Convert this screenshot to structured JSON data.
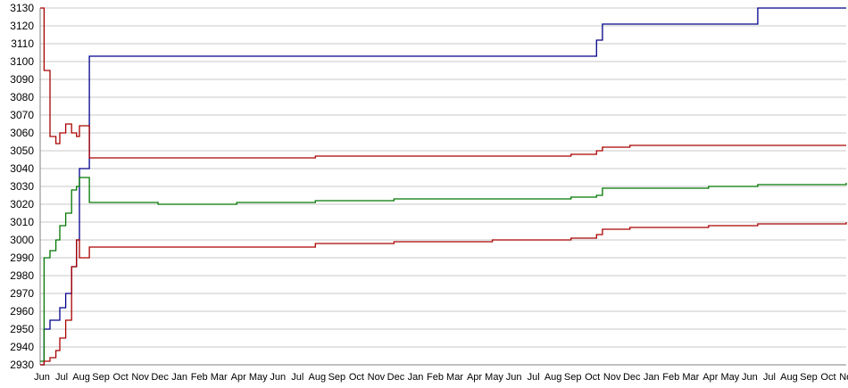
{
  "chart_data": {
    "type": "line",
    "title": "",
    "xlabel": "",
    "ylabel": "",
    "ylim": [
      2930,
      3130
    ],
    "y_ticks": [
      3130,
      3120,
      3110,
      3100,
      3090,
      3080,
      3070,
      3060,
      3050,
      3040,
      3030,
      3020,
      3010,
      3000,
      2990,
      2980,
      2970,
      2960,
      2950,
      2940,
      2930
    ],
    "grid": true,
    "legend": "none",
    "x_ticks": [
      "Jun",
      "Jul",
      "Aug",
      "Sep",
      "Oct",
      "Nov",
      "Dec",
      "Jan",
      "Feb",
      "Mar",
      "Apr",
      "May",
      "Jun",
      "Jul",
      "Aug",
      "Sep",
      "Oct",
      "Nov",
      "Dec",
      "Jan",
      "Feb",
      "Mar",
      "Apr",
      "May",
      "Jun",
      "Jul",
      "Aug",
      "Sep",
      "Oct",
      "Nov",
      "Dec",
      "Jan",
      "Feb",
      "Mar",
      "Apr",
      "May",
      "Jun",
      "Jul",
      "Aug",
      "Sep",
      "Oct",
      "Nov"
    ],
    "x": [
      0,
      0.2,
      0.5,
      0.8,
      1.0,
      1.3,
      1.6,
      1.85,
      2.0,
      2.5,
      3,
      6,
      10,
      14,
      18,
      20,
      23,
      27,
      28.3,
      28.6,
      30,
      34,
      36.5,
      41
    ],
    "series": [
      {
        "color": "#00008B",
        "values": [
          2930,
          2950,
          2955,
          2955,
          2962,
          2970,
          2985,
          3000,
          3040,
          3103,
          3103,
          3103,
          3103,
          3103,
          3103,
          3103,
          3103,
          3103,
          3112,
          3121,
          3121,
          3121,
          3130,
          3130
        ]
      },
      {
        "color": "#AA0000",
        "values": [
          3130,
          3095,
          3058,
          3054,
          3060,
          3065,
          3060,
          3058,
          3064,
          3046,
          3046,
          3046,
          3046,
          3047,
          3047,
          3047,
          3047,
          3048,
          3050,
          3052,
          3053,
          3053,
          3053,
          3053
        ]
      },
      {
        "color": "#007700",
        "values": [
          2932,
          2990,
          2994,
          3000,
          3008,
          3015,
          3028,
          3030,
          3035,
          3021,
          3021,
          3020,
          3021,
          3022,
          3023,
          3023,
          3023,
          3024,
          3025,
          3029,
          3029,
          3030,
          3031,
          3032
        ]
      },
      {
        "color": "#AA0000",
        "values": [
          2930,
          2932,
          2934,
          2938,
          2945,
          2955,
          2985,
          3000,
          2990,
          2996,
          2996,
          2996,
          2996,
          2998,
          2999,
          2999,
          3000,
          3001,
          3003,
          3006,
          3007,
          3008,
          3009,
          3010
        ]
      }
    ]
  }
}
